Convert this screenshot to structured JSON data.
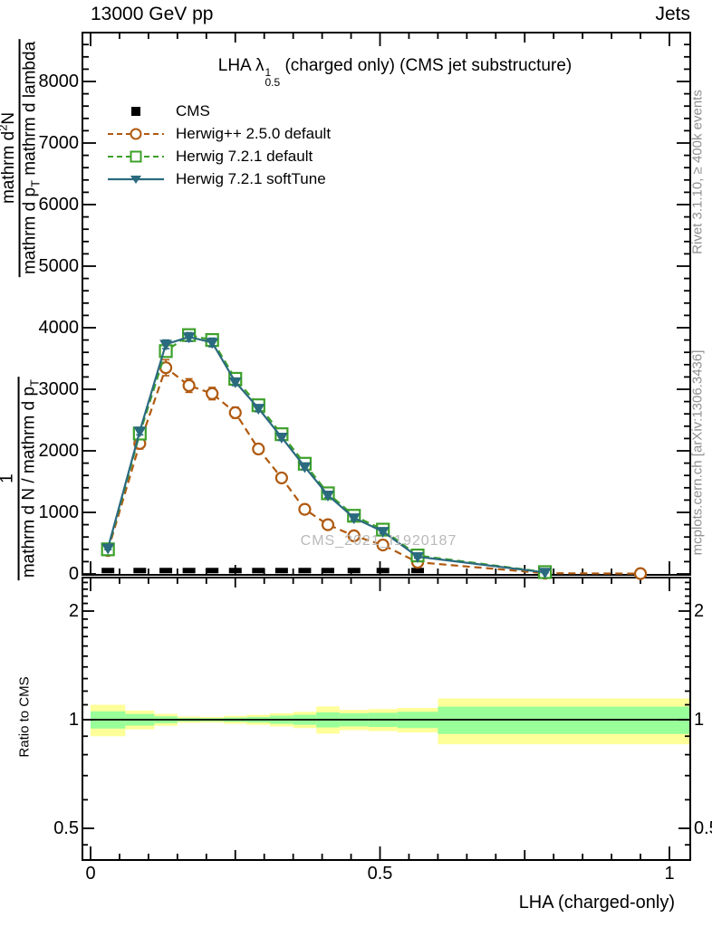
{
  "header": {
    "left": "13000 GeV pp",
    "right": "Jets"
  },
  "title": {
    "pre": "LHA ",
    "symbol": "λ",
    "sup": "1",
    "sub": "0.5",
    "post": " (charged only) (CMS jet substructure)"
  },
  "watermark": "CMS_2021_I1920187",
  "side_notes": {
    "top": "Rivet 3.1.10, ≥ 400k events",
    "bottom": "mcplots.cern.ch [arXiv:1306.3436]"
  },
  "ylabel": {
    "frac1": {
      "num": "1",
      "den_pre": "mathrm d N / mathrm d p",
      "den_sub": "T"
    },
    "frac2": {
      "num_pre": "mathrm d",
      "num_sup": "2",
      "num_post": "N",
      "den_pre": "mathrm d p",
      "den_sub": "T",
      "den_post": " mathrm d lambda"
    }
  },
  "xlabel": "LHA (charged-only)",
  "chart_data": {
    "type": "line",
    "title": "LHA λ^1_0.5 (charged only) (CMS jet substructure)",
    "xlabel": "LHA (charged-only)",
    "ylabel": "1/(dN/dp_T) d²N/(dp_T dλ)",
    "xlim": [
      0,
      1
    ],
    "ylim": [
      0,
      8794
    ],
    "grid": false,
    "legend_position": "top-left",
    "xticks": [
      {
        "v": 0,
        "label": "0"
      },
      {
        "v": 0.5,
        "label": "0.5"
      },
      {
        "v": 1,
        "label": "1"
      }
    ],
    "yticks": [
      {
        "v": 0,
        "label": "0"
      },
      {
        "v": 1000,
        "label": "1000"
      },
      {
        "v": 2000,
        "label": "2000"
      },
      {
        "v": 3000,
        "label": "3000"
      },
      {
        "v": 4000,
        "label": "4000"
      },
      {
        "v": 5000,
        "label": "5000"
      },
      {
        "v": 6000,
        "label": "6000"
      },
      {
        "v": 7000,
        "label": "7000"
      },
      {
        "v": 8000,
        "label": "8000"
      }
    ],
    "axes": {
      "x_minor_step": 0.05,
      "x_medium": [
        0.25,
        0.75
      ],
      "x_major": [
        0,
        0.5,
        1
      ],
      "y_minor_step": 200,
      "y_major_step": 1000
    },
    "series": [
      {
        "name": "CMS",
        "color": "#000000",
        "line": "none",
        "marker": "square-filled",
        "x": [
          0.03,
          0.085,
          0.13,
          0.17,
          0.21,
          0.25,
          0.29,
          0.33,
          0.37,
          0.41,
          0.455,
          0.505,
          0.565
        ],
        "y": [
          55,
          55,
          55,
          55,
          55,
          55,
          55,
          55,
          55,
          55,
          55,
          55,
          55
        ]
      },
      {
        "name": "Herwig++ 2.5.0 default",
        "color": "#b05a10",
        "line": "dashed",
        "marker": "circle-open",
        "x": [
          0.03,
          0.085,
          0.13,
          0.17,
          0.21,
          0.25,
          0.29,
          0.33,
          0.37,
          0.41,
          0.455,
          0.505,
          0.565,
          0.785,
          0.95
        ],
        "y": [
          380,
          2120,
          3350,
          3060,
          2930,
          2620,
          2030,
          1560,
          1050,
          800,
          620,
          470,
          190,
          12,
          5
        ],
        "yerr": [
          50,
          90,
          130,
          110,
          100,
          90,
          80,
          70,
          60,
          55,
          45,
          40,
          30,
          10,
          4
        ]
      },
      {
        "name": "Herwig 7.2.1 default",
        "color": "#3da02a",
        "line": "dashed",
        "marker": "square-open",
        "x": [
          0.03,
          0.085,
          0.13,
          0.17,
          0.21,
          0.25,
          0.29,
          0.33,
          0.37,
          0.41,
          0.455,
          0.505,
          0.565,
          0.785
        ],
        "y": [
          400,
          2280,
          3620,
          3880,
          3800,
          3170,
          2740,
          2270,
          1790,
          1310,
          945,
          720,
          300,
          30
        ],
        "yerr": [
          25,
          60,
          70,
          70,
          70,
          60,
          55,
          50,
          45,
          40,
          35,
          30,
          22,
          8
        ]
      },
      {
        "name": "Herwig 7.2.1 softTune",
        "color": "#2a6a7e",
        "line": "solid",
        "marker": "triangle-down-filled",
        "x": [
          0.03,
          0.085,
          0.13,
          0.17,
          0.21,
          0.25,
          0.29,
          0.33,
          0.37,
          0.41,
          0.455,
          0.505,
          0.565,
          0.785
        ],
        "y": [
          420,
          2320,
          3730,
          3850,
          3760,
          3120,
          2690,
          2220,
          1740,
          1280,
          910,
          690,
          280,
          25
        ],
        "yerr": [
          25,
          60,
          70,
          70,
          70,
          60,
          55,
          50,
          45,
          40,
          35,
          30,
          22,
          8
        ]
      }
    ],
    "ratio_panel": {
      "ylabel": "Ratio to CMS",
      "ylim": [
        0.41,
        2.47
      ],
      "scale": "log",
      "line_at": 1,
      "yticks": [
        {
          "v": 2,
          "label": "2"
        },
        {
          "v": 1,
          "label": "1"
        },
        {
          "v": 0.5,
          "label": "0.5"
        }
      ],
      "minor_ticks": [
        0.45,
        0.6,
        0.7,
        0.8,
        0.9,
        1.1,
        1.2,
        1.3,
        1.4,
        1.5,
        1.6,
        1.7,
        1.8,
        1.9,
        2.1,
        2.2,
        2.3,
        2.4
      ],
      "outer_color": "#ffff99",
      "inner_color": "#99ff99",
      "bands": [
        {
          "x0": 0.0,
          "x1": 0.06,
          "outer": [
            0.9,
            1.1
          ],
          "inner": [
            0.945,
            1.055
          ]
        },
        {
          "x0": 0.06,
          "x1": 0.11,
          "outer": [
            0.94,
            1.06
          ],
          "inner": [
            0.963,
            1.037
          ]
        },
        {
          "x0": 0.11,
          "x1": 0.15,
          "outer": [
            0.962,
            1.038
          ],
          "inner": [
            0.978,
            1.022
          ]
        },
        {
          "x0": 0.15,
          "x1": 0.19,
          "outer": [
            0.98,
            1.02
          ],
          "inner": [
            0.989,
            1.011
          ]
        },
        {
          "x0": 0.19,
          "x1": 0.23,
          "outer": [
            0.982,
            1.018
          ],
          "inner": [
            0.99,
            1.01
          ]
        },
        {
          "x0": 0.23,
          "x1": 0.27,
          "outer": [
            0.975,
            1.025
          ],
          "inner": [
            0.986,
            1.014
          ]
        },
        {
          "x0": 0.27,
          "x1": 0.31,
          "outer": [
            0.968,
            1.032
          ],
          "inner": [
            0.982,
            1.018
          ]
        },
        {
          "x0": 0.31,
          "x1": 0.35,
          "outer": [
            0.958,
            1.042
          ],
          "inner": [
            0.974,
            1.026
          ]
        },
        {
          "x0": 0.35,
          "x1": 0.39,
          "outer": [
            0.948,
            1.052
          ],
          "inner": [
            0.968,
            1.032
          ]
        },
        {
          "x0": 0.39,
          "x1": 0.43,
          "outer": [
            0.915,
            1.088
          ],
          "inner": [
            0.952,
            1.048
          ]
        },
        {
          "x0": 0.43,
          "x1": 0.48,
          "outer": [
            0.936,
            1.064
          ],
          "inner": [
            0.958,
            1.042
          ]
        },
        {
          "x0": 0.48,
          "x1": 0.53,
          "outer": [
            0.93,
            1.07
          ],
          "inner": [
            0.955,
            1.045
          ]
        },
        {
          "x0": 0.53,
          "x1": 0.6,
          "outer": [
            0.922,
            1.078
          ],
          "inner": [
            0.948,
            1.052
          ]
        },
        {
          "x0": 0.6,
          "x1": 1.035,
          "outer": [
            0.855,
            1.145
          ],
          "inner": [
            0.913,
            1.087
          ]
        }
      ]
    }
  }
}
